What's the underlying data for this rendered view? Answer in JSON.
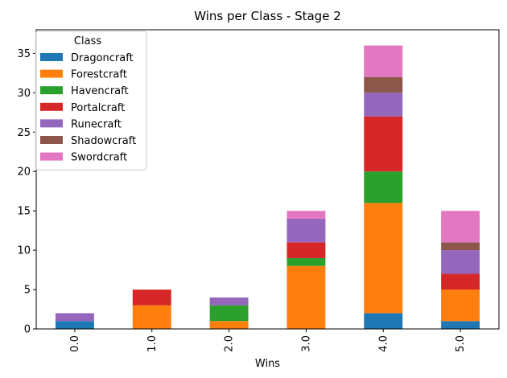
{
  "chart_data": {
    "type": "bar",
    "stacked": true,
    "title": "Wins per Class - Stage 2",
    "xlabel": "Wins",
    "ylabel": "",
    "categories": [
      "0.0",
      "1.0",
      "2.0",
      "3.0",
      "4.0",
      "5.0"
    ],
    "ylim": [
      0,
      38
    ],
    "yticks": [
      0,
      5,
      10,
      15,
      20,
      25,
      30,
      35
    ],
    "grid": false,
    "legend": {
      "title": "Class",
      "placement": "top-left"
    },
    "series": [
      {
        "name": "Dragoncraft",
        "color": "#1f77b4",
        "values": [
          1,
          0,
          0,
          0,
          2,
          1
        ]
      },
      {
        "name": "Forestcraft",
        "color": "#ff7f0e",
        "values": [
          0,
          3,
          1,
          8,
          14,
          4
        ]
      },
      {
        "name": "Havencraft",
        "color": "#2ca02c",
        "values": [
          0,
          0,
          2,
          1,
          4,
          0
        ]
      },
      {
        "name": "Portalcraft",
        "color": "#d62728",
        "values": [
          0,
          2,
          0,
          2,
          7,
          2
        ]
      },
      {
        "name": "Runecraft",
        "color": "#9467bd",
        "values": [
          1,
          0,
          1,
          3,
          3,
          3
        ]
      },
      {
        "name": "Shadowcraft",
        "color": "#8c564b",
        "values": [
          0,
          0,
          0,
          0,
          2,
          1
        ]
      },
      {
        "name": "Swordcraft",
        "color": "#e377c2",
        "values": [
          0,
          0,
          0,
          1,
          4,
          4
        ]
      }
    ]
  }
}
